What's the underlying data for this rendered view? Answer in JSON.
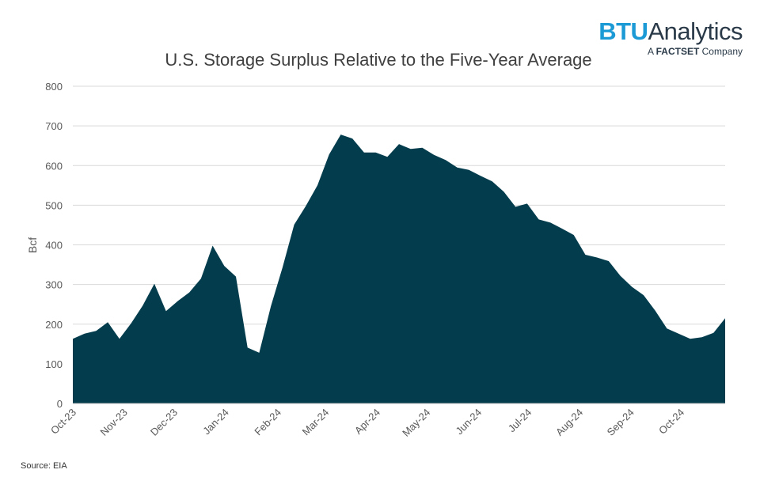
{
  "logo": {
    "brand_bold": "BTU",
    "brand_rest": "Analytics",
    "sub_prefix": "A",
    "sub_strong": "FACTSET",
    "sub_suffix": "Company"
  },
  "source_text": "Source: EIA",
  "colors": {
    "area_fill": "#033d4d",
    "grid": "#d9d9d9",
    "axis_text": "#595959",
    "title": "#404040"
  },
  "chart_data": {
    "type": "area",
    "title": "U.S. Storage Surplus Relative to the Five-Year Average",
    "xlabel": "",
    "ylabel": "Bcf",
    "ylim": [
      0,
      800
    ],
    "yticks": [
      0,
      100,
      200,
      300,
      400,
      500,
      600,
      700,
      800
    ],
    "grid": true,
    "x_tick_labels": [
      "Oct-23",
      "Nov-23",
      "Dec-23",
      "Jan-24",
      "Feb-24",
      "Mar-24",
      "Apr-24",
      "May-24",
      "Jun-24",
      "Jul-24",
      "Aug-24",
      "Sep-24",
      "Oct-24"
    ],
    "x_tick_weeks": [
      0,
      4.4,
      8.7,
      13.1,
      17.6,
      21.7,
      26.1,
      30.4,
      34.8,
      39.1,
      43.5,
      47.9,
      52.2
    ],
    "series": [
      {
        "values": [
          163,
          176,
          183,
          205,
          163,
          202,
          247,
          302,
          233,
          258,
          280,
          315,
          398,
          347,
          320,
          141,
          128,
          245,
          343,
          451,
          498,
          550,
          628,
          678,
          668,
          633,
          633,
          622,
          654,
          642,
          645,
          627,
          614,
          595,
          589,
          574,
          560,
          534,
          496,
          504,
          464,
          456,
          441,
          425,
          375,
          368,
          359,
          322,
          294,
          273,
          234,
          189,
          176,
          163,
          167,
          178,
          215
        ]
      }
    ]
  }
}
